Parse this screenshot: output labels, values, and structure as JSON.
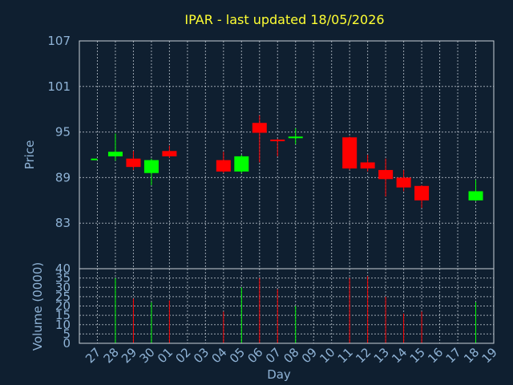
{
  "chart_data": {
    "type": "candlestick",
    "title": "IPAR - last updated 18/05/2026",
    "up_color": "#00ff00",
    "down_color": "#ff0000",
    "text_color": "#8fb3d6",
    "title_color": "#ffff33",
    "background": "#0f1f30",
    "grid": true,
    "categories": [
      "27",
      "28",
      "29",
      "30",
      "01",
      "02",
      "03",
      "04",
      "05",
      "06",
      "07",
      "08",
      "09",
      "10",
      "11",
      "12",
      "13",
      "14",
      "15",
      "16",
      "17",
      "18",
      "19"
    ],
    "xlabel": "Day",
    "price_panel": {
      "ylabel": "Price",
      "ylim": [
        77,
        107
      ],
      "yticks": [
        83,
        89,
        95,
        101,
        107
      ],
      "candles": [
        {
          "day": "27",
          "open": 91.5,
          "high": 91.5,
          "low": 91.5,
          "close": 91.5
        },
        {
          "day": "28",
          "open": 91.8,
          "high": 94.8,
          "low": 91.2,
          "close": 92.4
        },
        {
          "day": "29",
          "open": 91.5,
          "high": 92.5,
          "low": 90.0,
          "close": 90.4
        },
        {
          "day": "30",
          "open": 89.6,
          "high": 91.5,
          "low": 88.0,
          "close": 91.3
        },
        {
          "day": "01",
          "open": 92.5,
          "high": 93.2,
          "low": 91.6,
          "close": 91.8
        },
        {
          "day": "04",
          "open": 91.3,
          "high": 92.4,
          "low": 89.6,
          "close": 89.8
        },
        {
          "day": "05",
          "open": 89.8,
          "high": 92.0,
          "low": 89.6,
          "close": 91.8
        },
        {
          "day": "06",
          "open": 96.2,
          "high": 97.2,
          "low": 91.0,
          "close": 94.9
        },
        {
          "day": "07",
          "open": 94.0,
          "high": 94.1,
          "low": 91.8,
          "close": 93.9
        },
        {
          "day": "08",
          "open": 94.2,
          "high": 95.5,
          "low": 93.4,
          "close": 94.4
        },
        {
          "day": "11",
          "open": 94.3,
          "high": 94.4,
          "low": 90.0,
          "close": 90.2
        },
        {
          "day": "12",
          "open": 91.0,
          "high": 92.0,
          "low": 89.8,
          "close": 90.2
        },
        {
          "day": "13",
          "open": 90.0,
          "high": 91.5,
          "low": 86.5,
          "close": 88.8
        },
        {
          "day": "14",
          "open": 89.0,
          "high": 90.0,
          "low": 87.2,
          "close": 87.7
        },
        {
          "day": "15",
          "open": 87.9,
          "high": 88.0,
          "low": 85.0,
          "close": 86.0
        },
        {
          "day": "18",
          "open": 86.0,
          "high": 88.7,
          "low": 85.9,
          "close": 87.2
        }
      ]
    },
    "volume_panel": {
      "ylabel": "Volume (0000)",
      "ylim": [
        0,
        40
      ],
      "yticks": [
        0,
        5,
        10,
        15,
        20,
        25,
        30,
        35,
        40
      ],
      "bars": [
        {
          "day": "28",
          "value": 35,
          "direction": "up"
        },
        {
          "day": "29",
          "value": 24,
          "direction": "down"
        },
        {
          "day": "30",
          "value": 22,
          "direction": "up"
        },
        {
          "day": "01",
          "value": 23,
          "direction": "down"
        },
        {
          "day": "04",
          "value": 17,
          "direction": "down"
        },
        {
          "day": "05",
          "value": 30,
          "direction": "up"
        },
        {
          "day": "06",
          "value": 35,
          "direction": "down"
        },
        {
          "day": "07",
          "value": 29,
          "direction": "down"
        },
        {
          "day": "08",
          "value": 20,
          "direction": "up"
        },
        {
          "day": "11",
          "value": 35,
          "direction": "down"
        },
        {
          "day": "12",
          "value": 36,
          "direction": "down"
        },
        {
          "day": "13",
          "value": 25,
          "direction": "down"
        },
        {
          "day": "14",
          "value": 16,
          "direction": "down"
        },
        {
          "day": "15",
          "value": 17,
          "direction": "down"
        },
        {
          "day": "18",
          "value": 22,
          "direction": "up"
        }
      ]
    }
  }
}
